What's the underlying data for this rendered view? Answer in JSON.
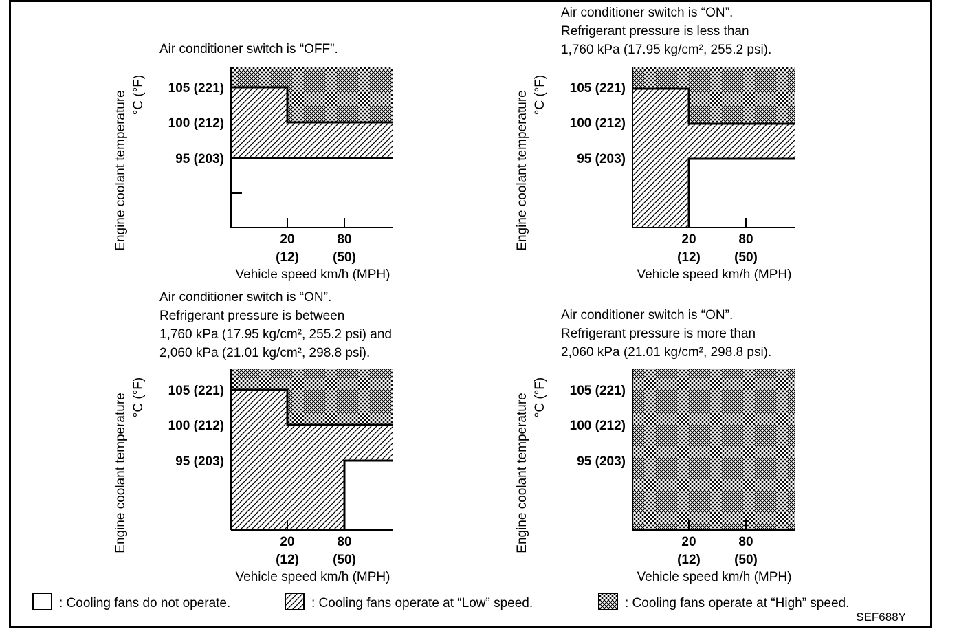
{
  "panels": [
    {
      "id": "ac-off",
      "caption": [
        "Air conditioner switch is “OFF”."
      ],
      "y_axis_label": "Engine coolant temperature",
      "y_axis_unit": "°C (°F)",
      "x_axis_label": "Vehicle speed km/h (MPH)",
      "y_ticks": [
        "105 (221)",
        "100 (212)",
        "95 (203)"
      ],
      "x_ticks": [
        {
          "kmh": "20",
          "mph": "(12)"
        },
        {
          "kmh": "80",
          "mph": "(50)"
        }
      ],
      "zones": [
        {
          "fill": "low",
          "region": "95–105 °C below 20 km/h; 95–100 °C above 20 km/h"
        },
        {
          "fill": "high",
          "region": "above 105 °C below 20 km/h; above 100 °C above 20 km/h"
        },
        {
          "fill": "none",
          "region": "below 95 °C"
        }
      ]
    },
    {
      "id": "ac-on-low-pressure",
      "caption": [
        "Air conditioner switch is “ON”.",
        "Refrigerant pressure is less than",
        "1,760 kPa (17.95 kg/cm², 255.2 psi)."
      ],
      "y_axis_label": "Engine coolant temperature",
      "y_axis_unit": "°C (°F)",
      "x_axis_label": "Vehicle speed km/h (MPH)",
      "y_ticks": [
        "105 (221)",
        "100 (212)",
        "95 (203)"
      ],
      "x_ticks": [
        {
          "kmh": "20",
          "mph": "(12)"
        },
        {
          "kmh": "80",
          "mph": "(50)"
        }
      ],
      "zones": [
        {
          "fill": "low",
          "region": "all temperatures up to 105 °C below 20 km/h; 95–100 °C above 20 km/h"
        },
        {
          "fill": "high",
          "region": "above 105 °C below 20 km/h; above 100 °C above 20 km/h"
        },
        {
          "fill": "none",
          "region": "below 95 °C above 20 km/h"
        }
      ]
    },
    {
      "id": "ac-on-mid-pressure",
      "caption": [
        "Air conditioner switch is “ON”.",
        "Refrigerant pressure is between",
        "1,760 kPa (17.95 kg/cm², 255.2 psi) and",
        "2,060 kPa (21.01 kg/cm², 298.8 psi)."
      ],
      "y_axis_label": "Engine coolant temperature",
      "y_axis_unit": "°C (°F)",
      "x_axis_label": "Vehicle speed km/h (MPH)",
      "y_ticks": [
        "105 (221)",
        "100 (212)",
        "95 (203)"
      ],
      "x_ticks": [
        {
          "kmh": "20",
          "mph": "(12)"
        },
        {
          "kmh": "80",
          "mph": "(50)"
        }
      ],
      "zones": [
        {
          "fill": "low",
          "region": "up to 105 °C below 20 km/h; up to 100 °C 20–80 km/h; 95–100 °C above 80 km/h"
        },
        {
          "fill": "high",
          "region": "above 105 °C below 20 km/h; above 100 °C above 20 km/h"
        },
        {
          "fill": "none",
          "region": "below 95 °C above 80 km/h"
        }
      ]
    },
    {
      "id": "ac-on-high-pressure",
      "caption": [
        "Air conditioner switch is “ON”.",
        "Refrigerant pressure is more than",
        "2,060 kPa (21.01 kg/cm², 298.8 psi)."
      ],
      "y_axis_label": "Engine coolant temperature",
      "y_axis_unit": "°C (°F)",
      "x_axis_label": "Vehicle speed km/h (MPH)",
      "y_ticks": [
        "105 (221)",
        "100 (212)",
        "95 (203)"
      ],
      "x_ticks": [
        {
          "kmh": "20",
          "mph": "(12)"
        },
        {
          "kmh": "80",
          "mph": "(50)"
        }
      ],
      "zones": [
        {
          "fill": "high",
          "region": "all speeds and temperatures"
        }
      ]
    }
  ],
  "legend": [
    {
      "fill": "none",
      "label": ": Cooling fans do not operate."
    },
    {
      "fill": "low",
      "label": ": Cooling fans operate at “Low” speed."
    },
    {
      "fill": "high",
      "label": ": Cooling fans operate at “High” speed."
    }
  ],
  "figure_code": "SEF688Y"
}
